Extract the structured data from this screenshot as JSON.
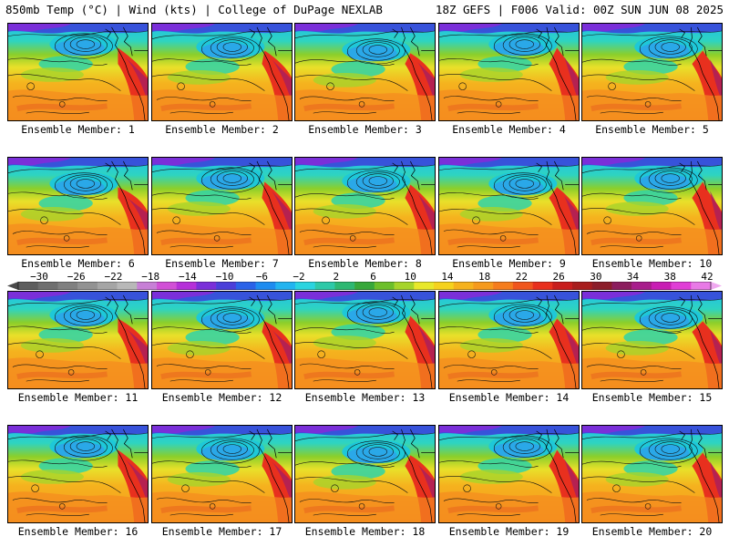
{
  "header": {
    "left_title": "850mb Temp (°C) | Wind (kts) | College of DuPage NEXLAB",
    "right_title": "18Z GEFS | F006 Valid: 00Z SUN JUN 08 2025"
  },
  "members": [
    {
      "label": "Ensemble Member: 1"
    },
    {
      "label": "Ensemble Member: 2"
    },
    {
      "label": "Ensemble Member: 3"
    },
    {
      "label": "Ensemble Member: 4"
    },
    {
      "label": "Ensemble Member: 5"
    },
    {
      "label": "Ensemble Member: 6"
    },
    {
      "label": "Ensemble Member: 7"
    },
    {
      "label": "Ensemble Member: 8"
    },
    {
      "label": "Ensemble Member: 9"
    },
    {
      "label": "Ensemble Member: 10"
    },
    {
      "label": "Ensemble Member: 11"
    },
    {
      "label": "Ensemble Member: 12"
    },
    {
      "label": "Ensemble Member: 13"
    },
    {
      "label": "Ensemble Member: 14"
    },
    {
      "label": "Ensemble Member: 15"
    },
    {
      "label": "Ensemble Member: 16"
    },
    {
      "label": "Ensemble Member: 17"
    },
    {
      "label": "Ensemble Member: 18"
    },
    {
      "label": "Ensemble Member: 19"
    },
    {
      "label": "Ensemble Member: 20"
    }
  ],
  "colorbar": {
    "labels": [
      "−30",
      "−26",
      "−22",
      "−18",
      "−14",
      "−10",
      "−6",
      "−2",
      "2",
      "6",
      "10",
      "14",
      "18",
      "22",
      "26",
      "30",
      "34",
      "38",
      "42"
    ],
    "colors": [
      "#5e5e5e",
      "#6f6f6f",
      "#808080",
      "#929292",
      "#a5a5a5",
      "#b8b8b8",
      "#c77fd6",
      "#d14fd6",
      "#b52fd9",
      "#7a2fd9",
      "#4a3fd9",
      "#2a62e8",
      "#1e8cf0",
      "#22b4f0",
      "#2ad4e0",
      "#2ec9a8",
      "#2eb872",
      "#37a83a",
      "#6cbf2a",
      "#a6d42a",
      "#e8e82a",
      "#f5d21e",
      "#f5b21e",
      "#f59a1e",
      "#f57d1e",
      "#f0561e",
      "#e8301e",
      "#c81e1e",
      "#a81e1e",
      "#8c1e2a",
      "#8c1e5e",
      "#a81e8c",
      "#c81eb4",
      "#e03ed6",
      "#e87ae6"
    ]
  }
}
